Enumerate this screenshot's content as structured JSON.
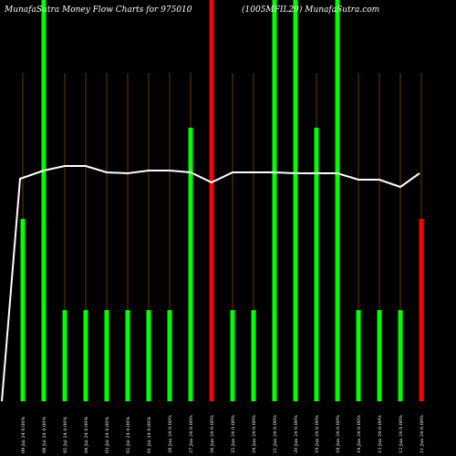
{
  "chart_data": {
    "type": "bar",
    "title_left": "MunafaSutra  Money Flow  Charts for 975010",
    "title_right": "(1005MFIL29) MunafaSutra.com",
    "categories": [
      "09 Jul 24 0.00%",
      "08 Jul 24 0.00%",
      "05 Jul 24 0.00%",
      "04 Jul 24 0.00%",
      "03 Jul 24 0.00%",
      "02 Jul 24 0.00%",
      "01 Jul 24 0.00%",
      "28 Jun 24 0.00%",
      "27 Jun 24 0.00%",
      "26 Jun 24 0.00%",
      "25 Jun 24 0.00%",
      "24 Jun 24 0.00%",
      "21 Jun 24 0.00%",
      "20 Jun 24 0.00%",
      "19 Jun 24 0.00%",
      "18 Jun 24 0.00%",
      "14 Jun 24 0.00%",
      "13 Jun 24 0.00%",
      "12 Jun 24 0.00%",
      "11 Jun 24 0.00%"
    ],
    "bars": [
      {
        "value": 200,
        "color": "#00ff00"
      },
      {
        "value": 440,
        "color": "#00ff00"
      },
      {
        "value": 100,
        "color": "#00ff00"
      },
      {
        "value": 100,
        "color": "#00ff00"
      },
      {
        "value": 100,
        "color": "#00ff00"
      },
      {
        "value": 100,
        "color": "#00ff00"
      },
      {
        "value": 100,
        "color": "#00ff00"
      },
      {
        "value": 100,
        "color": "#00ff00"
      },
      {
        "value": 300,
        "color": "#00ff00"
      },
      {
        "value": 440,
        "color": "#ff0000"
      },
      {
        "value": 100,
        "color": "#00ff00"
      },
      {
        "value": 100,
        "color": "#00ff00"
      },
      {
        "value": 440,
        "color": "#00ff00"
      },
      {
        "value": 440,
        "color": "#00ff00"
      },
      {
        "value": 300,
        "color": "#00ff00"
      },
      {
        "value": 440,
        "color": "#00ff00"
      },
      {
        "value": 100,
        "color": "#00ff00"
      },
      {
        "value": 100,
        "color": "#00ff00"
      },
      {
        "value": 100,
        "color": "#00ff00"
      },
      {
        "value": 200,
        "color": "#ff0000"
      }
    ],
    "line": {
      "start_value": 0,
      "values": [
        244,
        253,
        258,
        258,
        251,
        250,
        253,
        253,
        251,
        240,
        251,
        251,
        251,
        250,
        250,
        250,
        243,
        243,
        235,
        250
      ],
      "color": "#ffffff"
    },
    "ylim": [
      0,
      440
    ],
    "grid": true,
    "grid_color": "#6b3a00",
    "background": "#000000"
  }
}
